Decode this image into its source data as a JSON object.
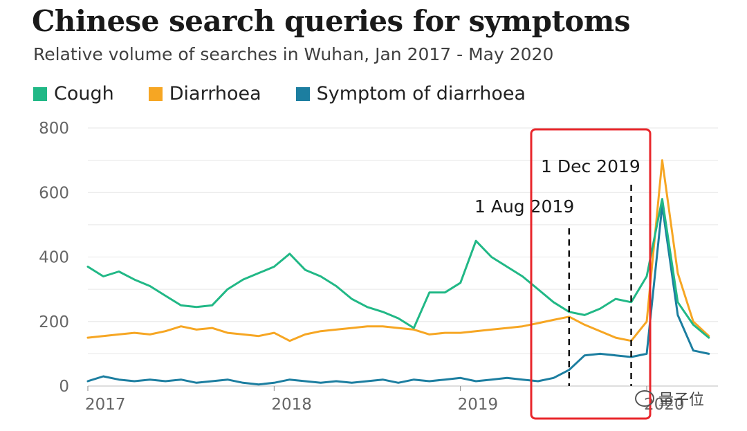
{
  "title": "Chinese search queries for symptoms",
  "subtitle": "Relative volume of searches in Wuhan, Jan 2017 - May 2020",
  "colors": {
    "cough": "#21b886",
    "diarrhoea": "#f6a623",
    "symptom_of_diarrhoea": "#1c7ea0",
    "highlight_box": "#e8262b",
    "grid": "#e6e6e6"
  },
  "watermark": "量子位",
  "chart_data": {
    "type": "line",
    "title": "Chinese search queries for symptoms",
    "subtitle": "Relative volume of searches in Wuhan, Jan 2017 - May 2020",
    "legend_position": "top-left",
    "grid": true,
    "ylim": [
      0,
      800
    ],
    "yticks": [
      "0",
      "200",
      "400",
      "600",
      "800"
    ],
    "xticks": [
      "2017",
      "2018",
      "2019",
      "2020"
    ],
    "x_dates": [
      "2017-01",
      "2017-02",
      "2017-03",
      "2017-04",
      "2017-05",
      "2017-06",
      "2017-07",
      "2017-08",
      "2017-09",
      "2017-10",
      "2017-11",
      "2017-12",
      "2018-01",
      "2018-02",
      "2018-03",
      "2018-04",
      "2018-05",
      "2018-06",
      "2018-07",
      "2018-08",
      "2018-09",
      "2018-10",
      "2018-11",
      "2018-12",
      "2019-01",
      "2019-02",
      "2019-03",
      "2019-04",
      "2019-05",
      "2019-06",
      "2019-07",
      "2019-08",
      "2019-09",
      "2019-10",
      "2019-11",
      "2019-12",
      "2020-01",
      "2020-02",
      "2020-03",
      "2020-04",
      "2020-05"
    ],
    "series": [
      {
        "name": "Cough",
        "key": "cough",
        "values": [
          370,
          340,
          355,
          330,
          310,
          280,
          250,
          245,
          250,
          300,
          330,
          350,
          370,
          410,
          360,
          340,
          310,
          270,
          245,
          230,
          210,
          180,
          290,
          290,
          320,
          450,
          400,
          370,
          340,
          300,
          260,
          230,
          220,
          240,
          270,
          260,
          340,
          580,
          260,
          190,
          150
        ]
      },
      {
        "name": "Diarrhoea",
        "key": "diarrhoea",
        "values": [
          150,
          155,
          160,
          165,
          160,
          170,
          185,
          175,
          180,
          165,
          160,
          155,
          165,
          140,
          160,
          170,
          175,
          180,
          185,
          185,
          180,
          175,
          160,
          165,
          165,
          170,
          175,
          180,
          185,
          195,
          205,
          215,
          190,
          170,
          150,
          140,
          200,
          700,
          350,
          200,
          155
        ]
      },
      {
        "name": "Symptom of diarrhoea",
        "key": "symptom_of_diarrhoea",
        "values": [
          15,
          30,
          20,
          15,
          20,
          15,
          20,
          10,
          15,
          20,
          10,
          5,
          10,
          20,
          15,
          10,
          15,
          10,
          15,
          20,
          10,
          20,
          15,
          20,
          25,
          15,
          20,
          25,
          20,
          15,
          25,
          50,
          95,
          100,
          95,
          90,
          100,
          560,
          220,
          110,
          100
        ]
      }
    ],
    "annotations": [
      {
        "label": "1 Aug 2019",
        "date": "2019-08"
      },
      {
        "label": "1 Dec 2019",
        "date": "2019-12"
      }
    ]
  }
}
